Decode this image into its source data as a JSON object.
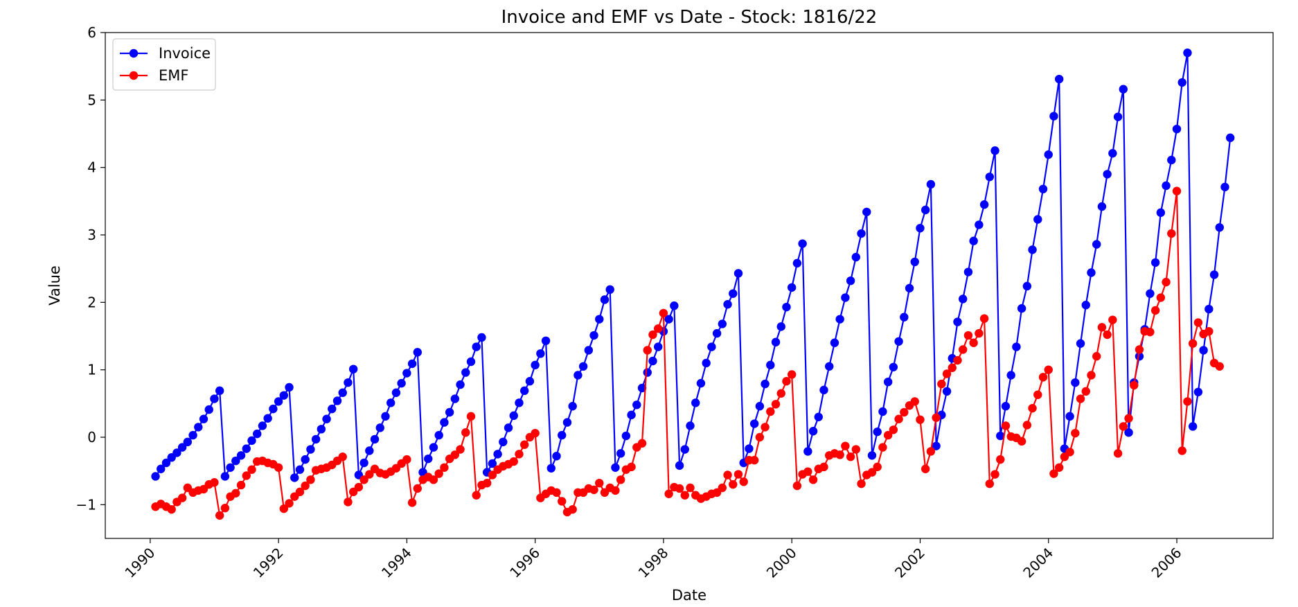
{
  "chart_data": {
    "type": "line",
    "title": "Invoice and EMF vs Date - Stock: 1816/22",
    "xlabel": "Date",
    "ylabel": "Value",
    "x_unit": "date (year)",
    "xlim": [
      1989.3,
      2007.5
    ],
    "ylim": [
      -1.5,
      6.0
    ],
    "x_ticks": [
      1990,
      1992,
      1994,
      1996,
      1998,
      2000,
      2002,
      2004,
      2006
    ],
    "y_ticks": [
      -1,
      0,
      1,
      2,
      3,
      4,
      5,
      6
    ],
    "y_tick_labels": [
      "−1",
      "0",
      "1",
      "2",
      "3",
      "4",
      "5",
      "6"
    ],
    "x_tick_rotation": 45,
    "grid": false,
    "legend": "top-left",
    "x_start": 1990.083,
    "x_step": 0.083333,
    "series": [
      {
        "name": "Invoice",
        "color": "#0000ff",
        "marker": "circle",
        "values": [
          -0.58,
          -0.47,
          -0.38,
          -0.3,
          -0.23,
          -0.15,
          -0.07,
          0.03,
          0.15,
          0.27,
          0.41,
          0.57,
          0.69,
          -0.58,
          -0.45,
          -0.35,
          -0.27,
          -0.17,
          -0.05,
          0.05,
          0.17,
          0.28,
          0.42,
          0.53,
          0.62,
          0.74,
          -0.6,
          -0.48,
          -0.33,
          -0.18,
          -0.03,
          0.12,
          0.27,
          0.42,
          0.54,
          0.66,
          0.81,
          1.01,
          -0.56,
          -0.38,
          -0.2,
          -0.03,
          0.14,
          0.31,
          0.51,
          0.66,
          0.8,
          0.95,
          1.09,
          1.26,
          -0.52,
          -0.32,
          -0.15,
          0.03,
          0.22,
          0.37,
          0.57,
          0.78,
          0.96,
          1.12,
          1.34,
          1.48,
          -0.52,
          -0.39,
          -0.25,
          -0.07,
          0.14,
          0.32,
          0.51,
          0.69,
          0.83,
          1.07,
          1.24,
          1.43,
          -0.46,
          -0.28,
          0.03,
          0.22,
          0.46,
          0.92,
          1.05,
          1.29,
          1.51,
          1.75,
          2.04,
          2.19,
          -0.45,
          -0.24,
          0.02,
          0.33,
          0.48,
          0.73,
          0.96,
          1.13,
          1.34,
          1.57,
          1.75,
          1.95,
          -0.42,
          -0.18,
          0.17,
          0.51,
          0.8,
          1.1,
          1.34,
          1.54,
          1.68,
          1.97,
          2.13,
          2.43,
          -0.38,
          -0.17,
          0.2,
          0.46,
          0.79,
          1.07,
          1.41,
          1.64,
          1.93,
          2.22,
          2.58,
          2.87,
          -0.21,
          0.09,
          0.3,
          0.7,
          1.05,
          1.4,
          1.75,
          2.07,
          2.32,
          2.67,
          3.02,
          3.34,
          -0.27,
          0.08,
          0.38,
          0.82,
          1.04,
          1.42,
          1.78,
          2.21,
          2.6,
          3.1,
          3.37,
          3.75,
          -0.13,
          0.33,
          0.68,
          1.17,
          1.71,
          2.05,
          2.45,
          2.91,
          3.15,
          3.45,
          3.86,
          4.25,
          0.02,
          0.46,
          0.92,
          1.34,
          1.91,
          2.24,
          2.78,
          3.23,
          3.68,
          4.19,
          4.76,
          5.31,
          -0.17,
          0.31,
          0.81,
          1.39,
          1.96,
          2.44,
          2.86,
          3.42,
          3.9,
          4.21,
          4.75,
          5.16,
          0.07,
          0.81,
          1.2,
          1.6,
          2.13,
          2.59,
          3.33,
          3.73,
          4.11,
          4.57,
          5.26,
          5.7,
          0.16,
          0.67,
          1.29,
          1.9,
          2.41,
          3.11,
          3.71,
          4.44
        ]
      },
      {
        "name": "EMF",
        "color": "#ff0000",
        "marker": "circle",
        "values": [
          -1.03,
          -0.99,
          -1.03,
          -1.07,
          -0.96,
          -0.9,
          -0.75,
          -0.82,
          -0.79,
          -0.77,
          -0.7,
          -0.67,
          -1.16,
          -1.05,
          -0.88,
          -0.83,
          -0.71,
          -0.57,
          -0.48,
          -0.36,
          -0.35,
          -0.38,
          -0.4,
          -0.45,
          -1.06,
          -0.98,
          -0.88,
          -0.81,
          -0.72,
          -0.63,
          -0.49,
          -0.47,
          -0.45,
          -0.41,
          -0.35,
          -0.29,
          -0.96,
          -0.81,
          -0.74,
          -0.63,
          -0.55,
          -0.47,
          -0.53,
          -0.55,
          -0.51,
          -0.46,
          -0.39,
          -0.33,
          -0.97,
          -0.76,
          -0.63,
          -0.59,
          -0.63,
          -0.54,
          -0.45,
          -0.32,
          -0.26,
          -0.18,
          0.07,
          0.31,
          -0.86,
          -0.71,
          -0.68,
          -0.56,
          -0.48,
          -0.43,
          -0.4,
          -0.36,
          -0.25,
          -0.11,
          0.0,
          0.06,
          -0.9,
          -0.84,
          -0.79,
          -0.82,
          -0.95,
          -1.11,
          -1.07,
          -0.82,
          -0.82,
          -0.76,
          -0.78,
          -0.68,
          -0.82,
          -0.75,
          -0.79,
          -0.63,
          -0.48,
          -0.44,
          -0.15,
          -0.09,
          1.29,
          1.52,
          1.61,
          1.84,
          -0.84,
          -0.74,
          -0.76,
          -0.86,
          -0.75,
          -0.86,
          -0.91,
          -0.88,
          -0.84,
          -0.82,
          -0.75,
          -0.56,
          -0.7,
          -0.55,
          -0.66,
          -0.34,
          -0.34,
          0.0,
          0.15,
          0.38,
          0.49,
          0.65,
          0.83,
          0.93,
          -0.72,
          -0.55,
          -0.51,
          -0.63,
          -0.47,
          -0.44,
          -0.27,
          -0.24,
          -0.26,
          -0.13,
          -0.29,
          -0.18,
          -0.69,
          -0.56,
          -0.52,
          -0.44,
          -0.15,
          0.03,
          0.11,
          0.27,
          0.37,
          0.47,
          0.53,
          0.26,
          -0.47,
          -0.21,
          0.29,
          0.79,
          0.94,
          1.03,
          1.14,
          1.3,
          1.51,
          1.4,
          1.54,
          1.76,
          -0.69,
          -0.55,
          -0.33,
          0.17,
          0.01,
          -0.01,
          -0.06,
          0.18,
          0.43,
          0.63,
          0.89,
          1.0,
          -0.54,
          -0.45,
          -0.29,
          -0.22,
          0.06,
          0.57,
          0.68,
          0.92,
          1.2,
          1.63,
          1.52,
          1.74,
          -0.24,
          0.16,
          0.28,
          0.77,
          1.3,
          1.57,
          1.56,
          1.88,
          2.07,
          2.3,
          3.02,
          3.65,
          -0.2,
          0.53,
          1.39,
          1.7,
          1.53,
          1.57,
          1.1,
          1.05
        ]
      }
    ]
  }
}
